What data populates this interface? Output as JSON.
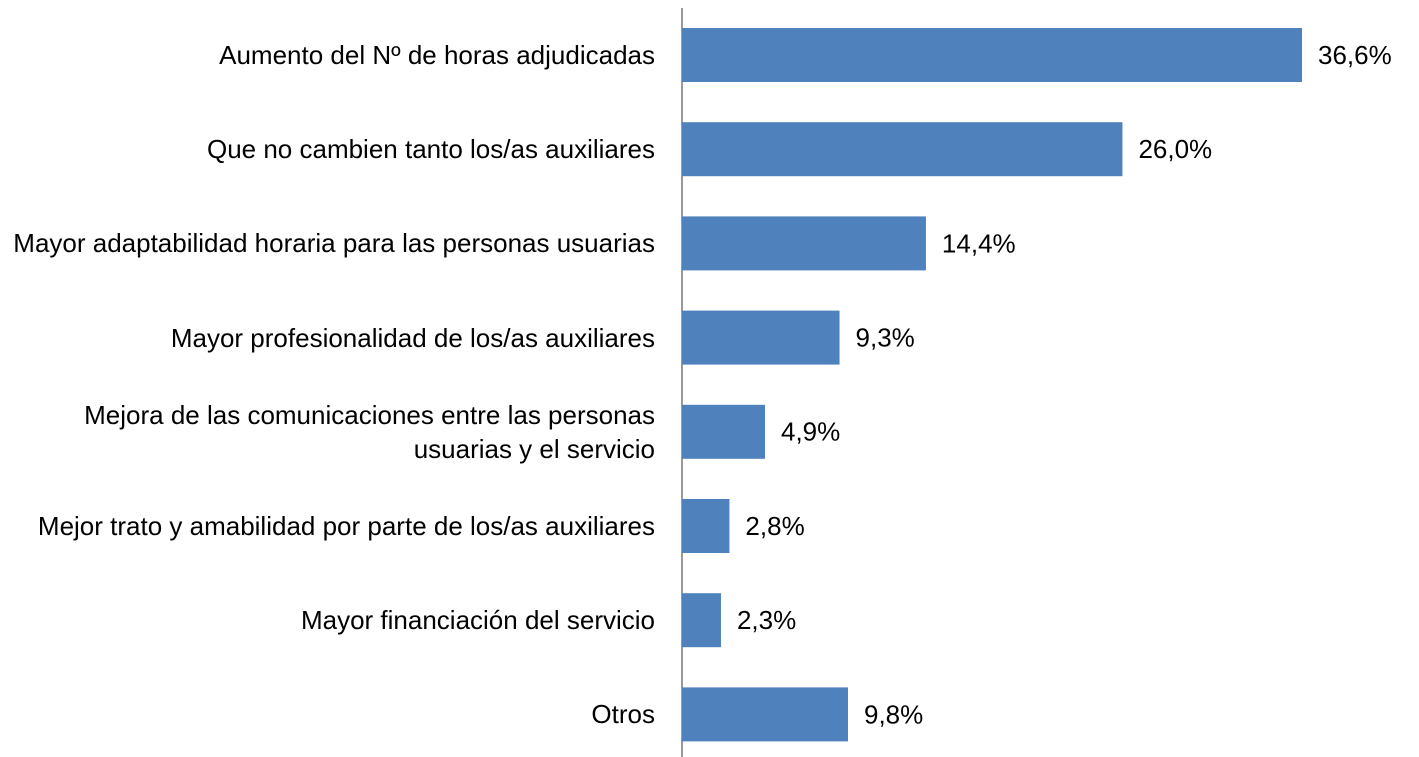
{
  "chart_data": {
    "type": "bar",
    "orientation": "horizontal",
    "categories": [
      "Aumento del Nº de horas adjudicadas",
      "Que no cambien tanto los/as auxiliares",
      "Mayor adaptabilidad horaria para las personas usuarias",
      "Mayor profesionalidad de los/as auxiliares",
      "Mejora de las comunicaciones entre las personas usuarias y el servicio",
      "Mejor trato y amabilidad por parte de los/as auxiliares",
      "Mayor financiación del servicio",
      "Otros"
    ],
    "values": [
      36.6,
      26.0,
      14.4,
      9.3,
      4.9,
      2.8,
      2.3,
      9.8
    ],
    "value_labels": [
      "36,6%",
      "26,0%",
      "14,4%",
      "9,3%",
      "4,9%",
      "2,8%",
      "2,3%",
      "9,8%"
    ],
    "color": "#4f81bd"
  }
}
